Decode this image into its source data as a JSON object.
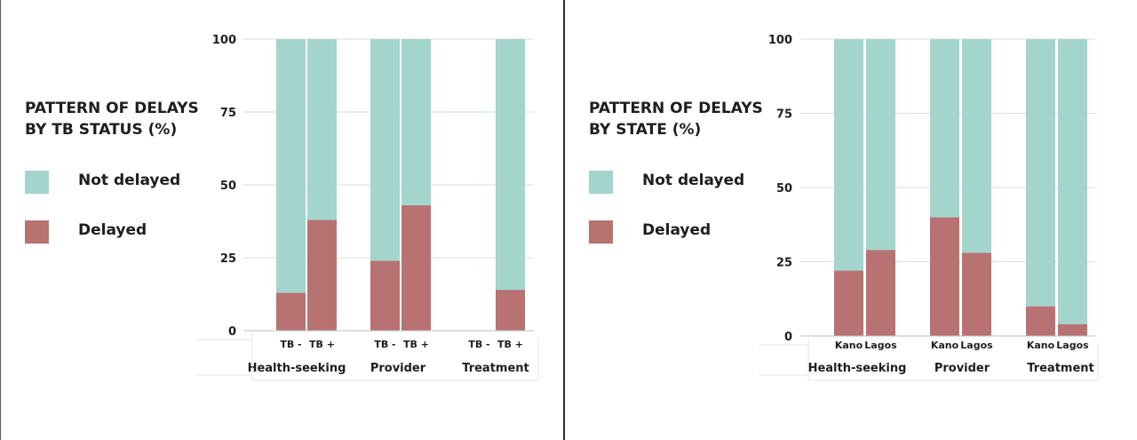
{
  "colors": {
    "not_delayed": "#a3d5cd",
    "delayed": "#b87272",
    "grid": "#dedede",
    "text": "#1e1e1e"
  },
  "charts": [
    {
      "title_line1": "PATTERN OF DELAYS",
      "title_line2": "BY TB STATUS (%)",
      "legend": {
        "not_delayed": "Not delayed",
        "delayed": "Delayed"
      }
    },
    {
      "title_line1": "PATTERN OF DELAYS",
      "title_line2": "BY STATE (%)",
      "legend": {
        "not_delayed": "Not delayed",
        "delayed": "Delayed"
      }
    }
  ],
  "chart_data": [
    {
      "type": "bar",
      "stacked": true,
      "title": "PATTERN OF DELAYS BY TB STATUS (%)",
      "groups": [
        "Health-seeking",
        "Provider",
        "Treatment"
      ],
      "categories": [
        "TB -",
        "TB +"
      ],
      "series": [
        {
          "name": "Delayed",
          "values": [
            [
              13,
              38
            ],
            [
              24,
              43
            ],
            [
              0,
              14
            ]
          ]
        },
        {
          "name": "Not delayed",
          "values": [
            [
              87,
              62
            ],
            [
              76,
              57
            ],
            [
              0,
              86
            ]
          ]
        }
      ],
      "yticks": [
        0,
        25,
        50,
        75,
        100
      ],
      "ylim": [
        0,
        100
      ],
      "grid": true,
      "legend_position": "left"
    },
    {
      "type": "bar",
      "stacked": true,
      "title": "PATTERN OF DELAYS BY STATE (%)",
      "groups": [
        "Health-seeking",
        "Provider",
        "Treatment"
      ],
      "categories": [
        "Kano",
        "Lagos"
      ],
      "series": [
        {
          "name": "Delayed",
          "values": [
            [
              22,
              29
            ],
            [
              40,
              28
            ],
            [
              10,
              4
            ]
          ]
        },
        {
          "name": "Not delayed",
          "values": [
            [
              78,
              71
            ],
            [
              60,
              72
            ],
            [
              90,
              96
            ]
          ]
        }
      ],
      "yticks": [
        0,
        25,
        50,
        75,
        100
      ],
      "ylim": [
        0,
        100
      ],
      "grid": true,
      "legend_position": "left"
    }
  ]
}
